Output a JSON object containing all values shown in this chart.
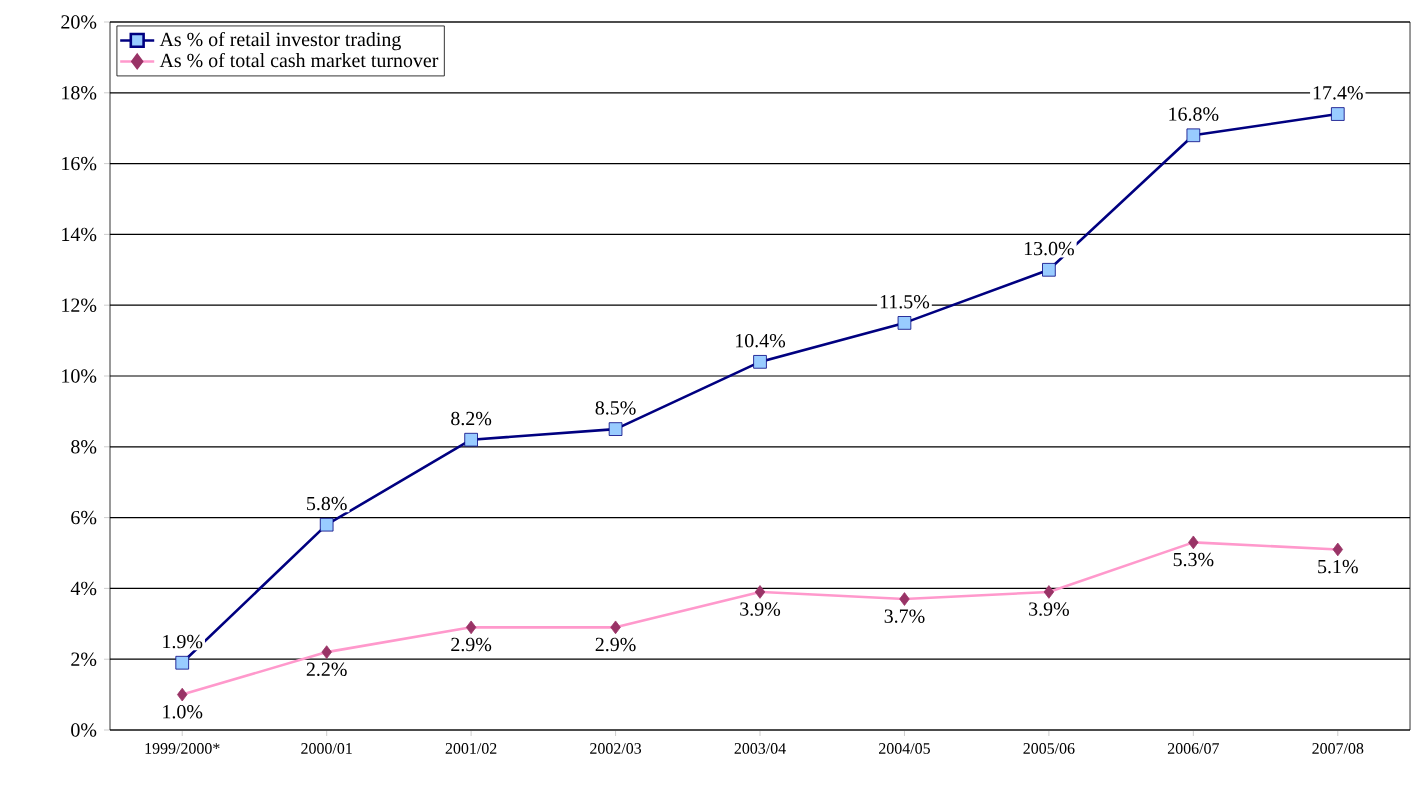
{
  "chart_data": {
    "type": "line",
    "categories": [
      "1999/2000*",
      "2000/01",
      "2001/02",
      "2002/03",
      "2003/04",
      "2004/05",
      "2005/06",
      "2006/07",
      "2007/08"
    ],
    "series": [
      {
        "name": "As % of retail investor trading",
        "color": "#000080",
        "marker": "square",
        "colors": [
          "#99ccff",
          "#99ccff",
          "#99ccff",
          "#99ccff",
          "#99ccff",
          "#99ccff",
          "#99ccff",
          "#99ccff",
          "#99ccff"
        ],
        "values": [
          1.9,
          5.8,
          8.2,
          8.5,
          10.4,
          11.5,
          13.0,
          16.8,
          17.4
        ],
        "value_labels": [
          "1.9%",
          "5.8%",
          "8.2%",
          "8.5%",
          "10.4%",
          "11.5%",
          "13.0%",
          "16.8%",
          "17.4%"
        ]
      },
      {
        "name": "As % of total cash market turnover",
        "color": "#ff99cc",
        "marker": "diamond",
        "colors": [
          "#993366",
          "#993366",
          "#993366",
          "#993366",
          "#993366",
          "#993366",
          "#993366",
          "#993366",
          "#993366"
        ],
        "values": [
          1.0,
          2.2,
          2.9,
          2.9,
          3.9,
          3.7,
          3.9,
          5.3,
          5.1
        ],
        "value_labels": [
          "1.0%",
          "2.2%",
          "2.9%",
          "2.9%",
          "3.9%",
          "3.7%",
          "3.9%",
          "5.3%",
          "5.1%"
        ]
      }
    ],
    "ylim": [
      0,
      20
    ],
    "yticks": [
      {
        "value": 0,
        "label": "0%"
      },
      {
        "value": 2,
        "label": "2%"
      },
      {
        "value": 4,
        "label": "4%"
      },
      {
        "value": 6,
        "label": "6%"
      },
      {
        "value": 8,
        "label": "8%"
      },
      {
        "value": 10,
        "label": "10%"
      },
      {
        "value": 12,
        "label": "12%"
      },
      {
        "value": 14,
        "label": "14%"
      },
      {
        "value": 16,
        "label": "16%"
      },
      {
        "value": 18,
        "label": "18%"
      },
      {
        "value": 20,
        "label": "20%"
      }
    ],
    "grid": "y",
    "legend": "top left",
    "line_style": "solid"
  }
}
